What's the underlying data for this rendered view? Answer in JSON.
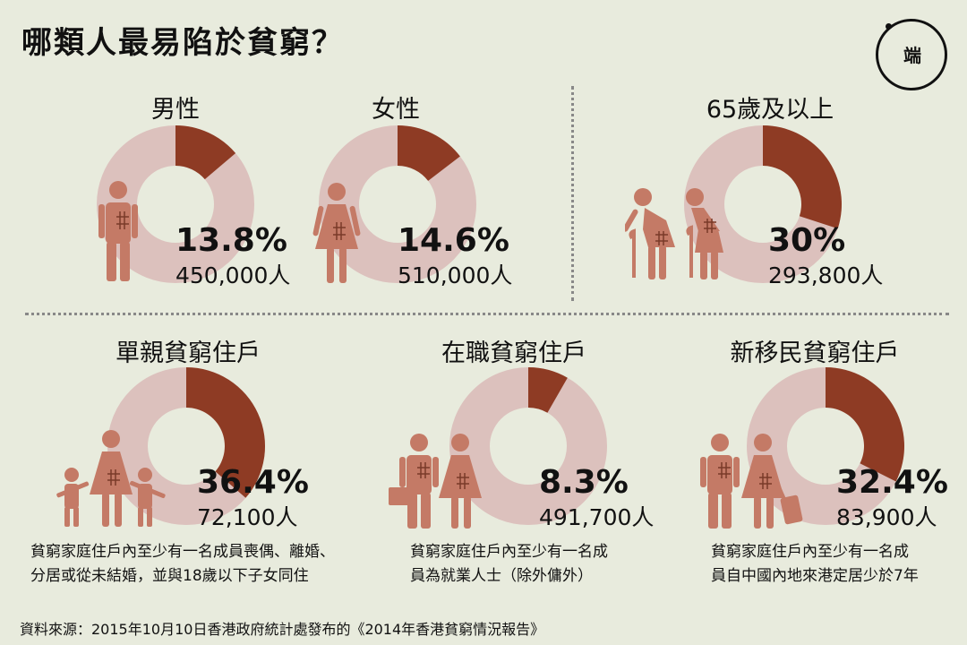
{
  "title": "哪類人最易陷於貧窮？",
  "logo_text": "端",
  "colors": {
    "background": "#e8ebdd",
    "poor": "#8e3b24",
    "rest": "#dcc1bd",
    "figure": "#c47a66"
  },
  "chart_data": [
    {
      "type": "pie",
      "title": "男性",
      "value_percent": 13.8,
      "label": "13.8%",
      "count": "450,000人"
    },
    {
      "type": "pie",
      "title": "女性",
      "value_percent": 14.6,
      "label": "14.6%",
      "count": "510,000人"
    },
    {
      "type": "pie",
      "title": "65歲及以上",
      "value_percent": 30,
      "label": "30%",
      "count": "293,800人"
    },
    {
      "type": "pie",
      "title": "單親貧窮住戶",
      "value_percent": 36.4,
      "label": "36.4%",
      "count": "72,100人",
      "note": [
        "貧窮家庭住戶內至少有一名成員喪偶、離婚、",
        "分居或從未結婚，並與18歲以下子女同住"
      ]
    },
    {
      "type": "pie",
      "title": "在職貧窮住戶",
      "value_percent": 8.3,
      "label": "8.3%",
      "count": "491,700人",
      "note": [
        "貧窮家庭住戶內至少有一名成",
        "員為就業人士（除外傭外）"
      ]
    },
    {
      "type": "pie",
      "title": "新移民貧窮住戶",
      "value_percent": 32.4,
      "label": "32.4%",
      "count": "83,900人",
      "note": [
        "貧窮家庭住戶內至少有一名成",
        "員自中國內地來港定居少於7年"
      ]
    }
  ],
  "source": "資料來源：2015年10月10日香港政府統計處發布的《2014年香港貧窮情況報告》"
}
